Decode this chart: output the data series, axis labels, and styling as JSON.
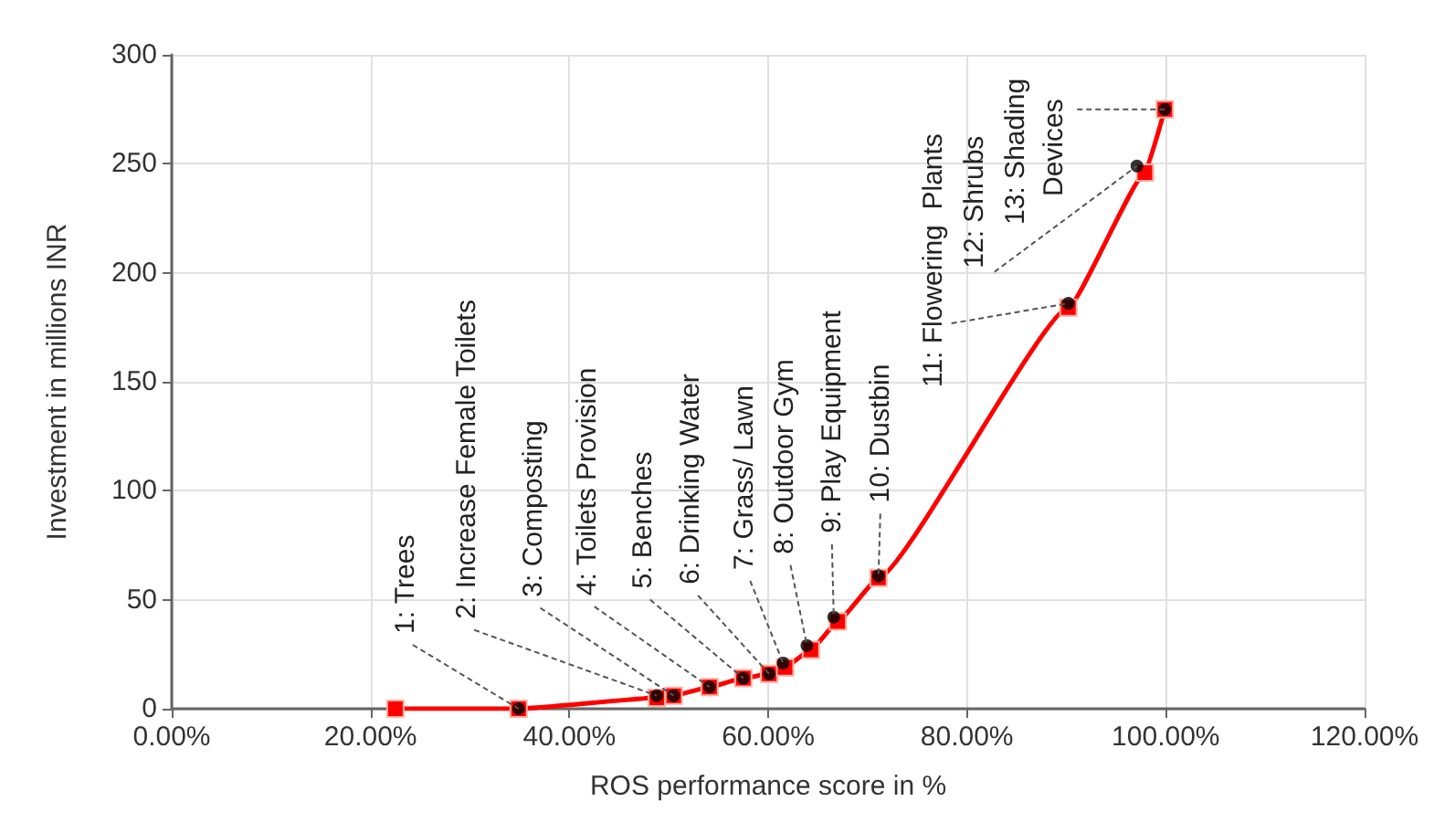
{
  "chart_data": {
    "type": "line",
    "xlabel": "ROS performance score in %",
    "ylabel": "Investment in millions INR",
    "xlim": [
      0,
      120
    ],
    "xticks": [
      {
        "value": 0,
        "label": "0.00%"
      },
      {
        "value": 20,
        "label": "20.00%"
      },
      {
        "value": 40,
        "label": "40.00%"
      },
      {
        "value": 60,
        "label": "60.00%"
      },
      {
        "value": 80,
        "label": "80.00%"
      },
      {
        "value": 100,
        "label": "100.00%"
      },
      {
        "value": 120,
        "label": "120.00%"
      }
    ],
    "ylim": [
      0,
      300
    ],
    "yticks": [
      0,
      50,
      100,
      150,
      200,
      250,
      300
    ],
    "grid": true,
    "line_style": "solid",
    "series": [
      {
        "color": "#ff0000",
        "marker": "square",
        "x": [
          22.5,
          34.9,
          48.8,
          50.5,
          54.1,
          57.5,
          60.1,
          61.7,
          64.3,
          67.0,
          71.1,
          90.2,
          97.9,
          99.9
        ],
        "values": [
          0,
          0,
          5,
          6,
          10,
          14,
          16,
          19,
          27,
          40,
          60,
          184,
          246,
          275
        ]
      },
      {
        "type": "scatter",
        "color": "#000000",
        "marker": "circle",
        "x": [
          34.9,
          48.8,
          50.5,
          54.1,
          57.5,
          60.1,
          61.5,
          63.9,
          66.6,
          71.1,
          90.2,
          97.1,
          99.9
        ],
        "values": [
          0,
          6,
          6,
          10,
          14,
          16,
          21,
          29,
          42,
          61,
          186,
          249,
          275
        ]
      }
    ],
    "annotations": [
      {
        "text": "1: Trees",
        "x": 34.9,
        "y": 0
      },
      {
        "text": "2: Increase Female Toilets",
        "x": 48.8,
        "y": 6
      },
      {
        "text": "3: Composting",
        "x": 50.5,
        "y": 6
      },
      {
        "text": "4: Toilets Provision",
        "x": 54.1,
        "y": 10
      },
      {
        "text": "5: Benches",
        "x": 57.5,
        "y": 14
      },
      {
        "text": "6: Drinking Water",
        "x": 60.1,
        "y": 16
      },
      {
        "text": "7: Grass/ Lawn",
        "x": 61.5,
        "y": 21
      },
      {
        "text": "8: Outdoor Gym",
        "x": 63.9,
        "y": 29
      },
      {
        "text": "9: Play Equipment",
        "x": 66.6,
        "y": 42
      },
      {
        "text": "10: Dustbin",
        "x": 71.1,
        "y": 61
      },
      {
        "text": "11: Flowering  Plants",
        "x": 90.2,
        "y": 186
      },
      {
        "text": "12: Shrubs",
        "x": 97.1,
        "y": 249
      },
      {
        "text": "13: Shading Devices",
        "x": 99.9,
        "y": 275
      }
    ]
  }
}
